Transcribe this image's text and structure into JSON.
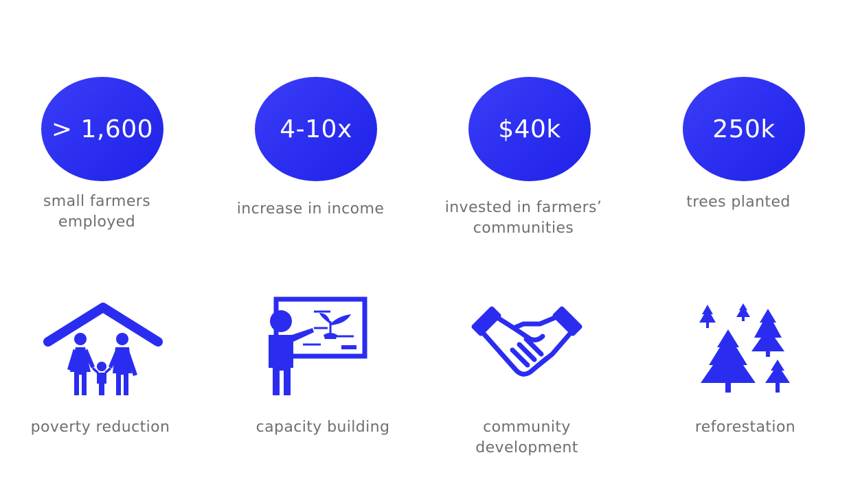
{
  "colors": {
    "accent": "#2a2df0",
    "caption_text": "#6f6f6f",
    "background": "#ffffff"
  },
  "stats": [
    {
      "value": "> 1,600",
      "caption_line1": "small farmers",
      "caption_line2": "employed"
    },
    {
      "value": "4-10x",
      "caption_line1": "increase in income",
      "caption_line2": ""
    },
    {
      "value": "$40k",
      "caption_line1": "invested in farmers’",
      "caption_line2": "communities"
    },
    {
      "value": "250k",
      "caption_line1": "trees planted",
      "caption_line2": ""
    }
  ],
  "impacts": [
    {
      "icon": "family-house-icon",
      "caption_line1": "poverty reduction",
      "caption_line2": ""
    },
    {
      "icon": "teacher-board-icon",
      "caption_line1": "capacity building",
      "caption_line2": ""
    },
    {
      "icon": "handshake-icon",
      "caption_line1": "community",
      "caption_line2": "development"
    },
    {
      "icon": "trees-icon",
      "caption_line1": "reforestation",
      "caption_line2": ""
    }
  ]
}
